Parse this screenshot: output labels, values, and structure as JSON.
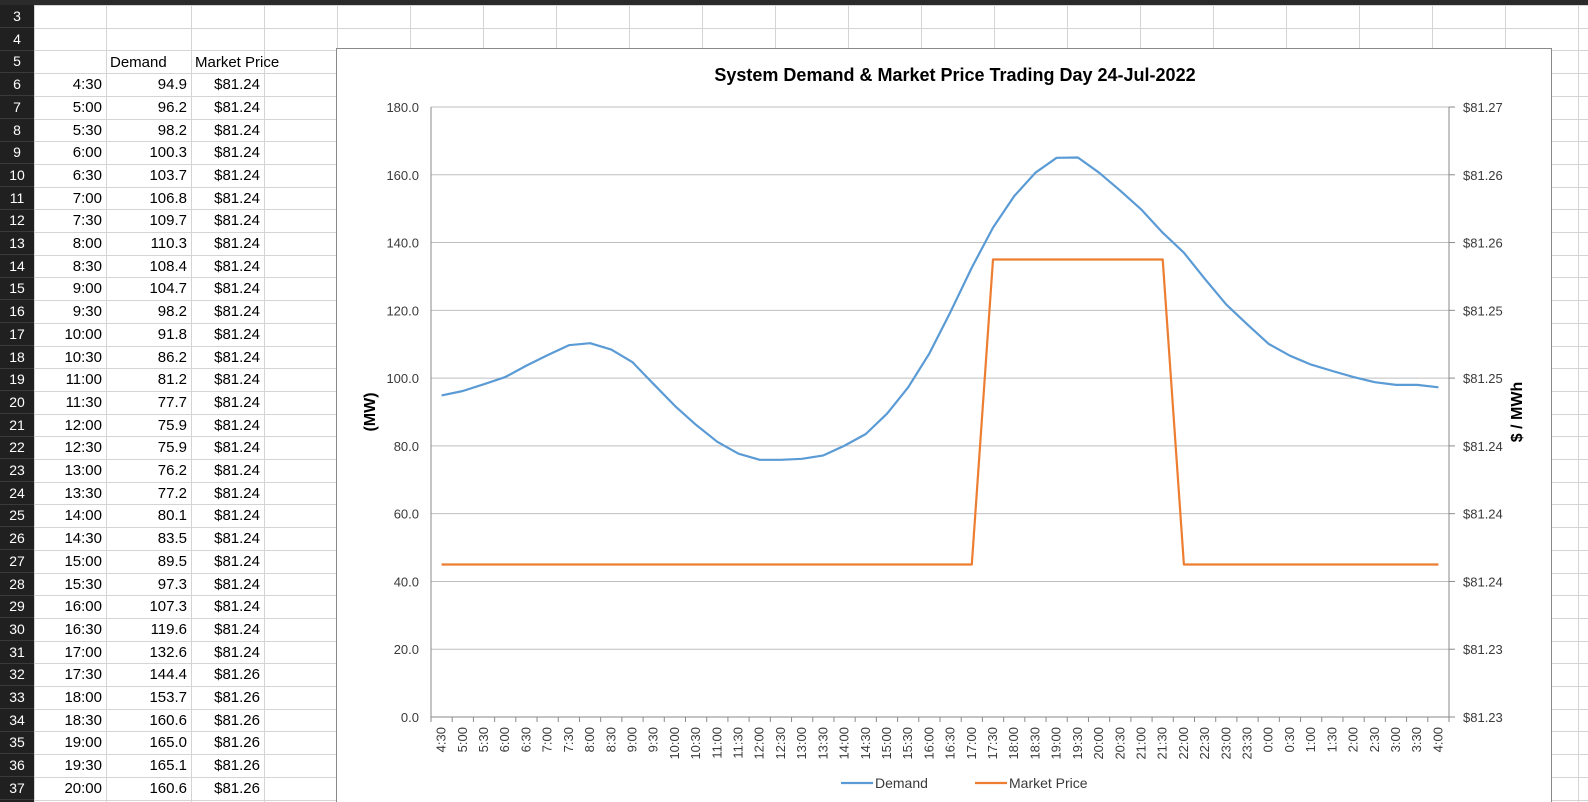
{
  "spreadsheet": {
    "row_numbers": [
      "3",
      "4",
      "5",
      "6",
      "7",
      "8",
      "9",
      "10",
      "11",
      "12",
      "13",
      "14",
      "15",
      "16",
      "17",
      "18",
      "19",
      "20",
      "21",
      "22",
      "23",
      "24",
      "25",
      "26",
      "27",
      "28",
      "29",
      "30",
      "31",
      "32",
      "33",
      "34",
      "35",
      "36",
      "37"
    ],
    "headers": {
      "demand": "Demand",
      "price": "Market Price"
    },
    "rows": [
      {
        "time": "4:30",
        "demand": "94.9",
        "price": "$81.24"
      },
      {
        "time": "5:00",
        "demand": "96.2",
        "price": "$81.24"
      },
      {
        "time": "5:30",
        "demand": "98.2",
        "price": "$81.24"
      },
      {
        "time": "6:00",
        "demand": "100.3",
        "price": "$81.24"
      },
      {
        "time": "6:30",
        "demand": "103.7",
        "price": "$81.24"
      },
      {
        "time": "7:00",
        "demand": "106.8",
        "price": "$81.24"
      },
      {
        "time": "7:30",
        "demand": "109.7",
        "price": "$81.24"
      },
      {
        "time": "8:00",
        "demand": "110.3",
        "price": "$81.24"
      },
      {
        "time": "8:30",
        "demand": "108.4",
        "price": "$81.24"
      },
      {
        "time": "9:00",
        "demand": "104.7",
        "price": "$81.24"
      },
      {
        "time": "9:30",
        "demand": "98.2",
        "price": "$81.24"
      },
      {
        "time": "10:00",
        "demand": "91.8",
        "price": "$81.24"
      },
      {
        "time": "10:30",
        "demand": "86.2",
        "price": "$81.24"
      },
      {
        "time": "11:00",
        "demand": "81.2",
        "price": "$81.24"
      },
      {
        "time": "11:30",
        "demand": "77.7",
        "price": "$81.24"
      },
      {
        "time": "12:00",
        "demand": "75.9",
        "price": "$81.24"
      },
      {
        "time": "12:30",
        "demand": "75.9",
        "price": "$81.24"
      },
      {
        "time": "13:00",
        "demand": "76.2",
        "price": "$81.24"
      },
      {
        "time": "13:30",
        "demand": "77.2",
        "price": "$81.24"
      },
      {
        "time": "14:00",
        "demand": "80.1",
        "price": "$81.24"
      },
      {
        "time": "14:30",
        "demand": "83.5",
        "price": "$81.24"
      },
      {
        "time": "15:00",
        "demand": "89.5",
        "price": "$81.24"
      },
      {
        "time": "15:30",
        "demand": "97.3",
        "price": "$81.24"
      },
      {
        "time": "16:00",
        "demand": "107.3",
        "price": "$81.24"
      },
      {
        "time": "16:30",
        "demand": "119.6",
        "price": "$81.24"
      },
      {
        "time": "17:00",
        "demand": "132.6",
        "price": "$81.24"
      },
      {
        "time": "17:30",
        "demand": "144.4",
        "price": "$81.26"
      },
      {
        "time": "18:00",
        "demand": "153.7",
        "price": "$81.26"
      },
      {
        "time": "18:30",
        "demand": "160.6",
        "price": "$81.26"
      },
      {
        "time": "19:00",
        "demand": "165.0",
        "price": "$81.26"
      },
      {
        "time": "19:30",
        "demand": "165.1",
        "price": "$81.26"
      },
      {
        "time": "20:00",
        "demand": "160.6",
        "price": "$81.26"
      }
    ]
  },
  "chart_data": {
    "type": "line",
    "title": "System Demand & Market Price Trading Day 24-Jul-2022",
    "ylabel": "(MW)",
    "y2label": "$ / MWh",
    "ylim": [
      0,
      180
    ],
    "y_ticks": [
      "0.0",
      "20.0",
      "40.0",
      "60.0",
      "80.0",
      "100.0",
      "120.0",
      "140.0",
      "160.0",
      "180.0"
    ],
    "y2lim": [
      81.23,
      81.27
    ],
    "y2_ticks": [
      "$81.23",
      "$81.23",
      "$81.24",
      "$81.24",
      "$81.24",
      "$81.25",
      "$81.25",
      "$81.26",
      "$81.26",
      "$81.27"
    ],
    "categories": [
      "4:30",
      "5:00",
      "5:30",
      "6:00",
      "6:30",
      "7:00",
      "7:30",
      "8:00",
      "8:30",
      "9:00",
      "9:30",
      "10:00",
      "10:30",
      "11:00",
      "11:30",
      "12:00",
      "12:30",
      "13:00",
      "13:30",
      "14:00",
      "14:30",
      "15:00",
      "15:30",
      "16:00",
      "16:30",
      "17:00",
      "17:30",
      "18:00",
      "18:30",
      "19:00",
      "19:30",
      "20:00",
      "20:30",
      "21:00",
      "21:30",
      "22:00",
      "22:30",
      "23:00",
      "23:30",
      "0:00",
      "0:30",
      "1:00",
      "1:30",
      "2:00",
      "2:30",
      "3:00",
      "3:30",
      "4:00"
    ],
    "series": [
      {
        "name": "Demand",
        "axis": "left",
        "color": "#5b9bd5",
        "values": [
          94.9,
          96.2,
          98.2,
          100.3,
          103.7,
          106.8,
          109.7,
          110.3,
          108.4,
          104.7,
          98.2,
          91.8,
          86.2,
          81.2,
          77.7,
          75.9,
          75.9,
          76.2,
          77.2,
          80.1,
          83.5,
          89.5,
          97.3,
          107.3,
          119.6,
          132.6,
          144.4,
          153.7,
          160.6,
          165.0,
          165.1,
          160.6,
          155.3,
          149.7,
          142.9,
          137.0,
          129.2,
          121.7,
          115.8,
          110.1,
          106.6,
          104.0,
          102.1,
          100.3,
          98.8,
          98.0,
          98.0,
          97.3
        ]
      },
      {
        "name": "Market Price",
        "axis": "right",
        "color": "#ed7d31",
        "values": [
          81.24,
          81.24,
          81.24,
          81.24,
          81.24,
          81.24,
          81.24,
          81.24,
          81.24,
          81.24,
          81.24,
          81.24,
          81.24,
          81.24,
          81.24,
          81.24,
          81.24,
          81.24,
          81.24,
          81.24,
          81.24,
          81.24,
          81.24,
          81.24,
          81.24,
          81.24,
          81.26,
          81.26,
          81.26,
          81.26,
          81.26,
          81.26,
          81.26,
          81.26,
          81.26,
          81.24,
          81.24,
          81.24,
          81.24,
          81.24,
          81.24,
          81.24,
          81.24,
          81.24,
          81.24,
          81.24,
          81.24,
          81.24
        ]
      }
    ],
    "legend": "bottom",
    "grid": true
  }
}
